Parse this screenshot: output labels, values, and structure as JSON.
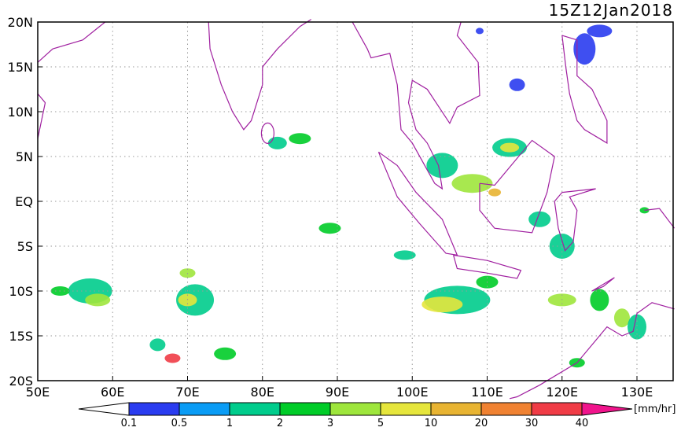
{
  "header": {
    "title": "15Z12Jan2018"
  },
  "map": {
    "lat_labels": [
      "20N",
      "15N",
      "10N",
      "5N",
      "EQ",
      "5S",
      "10S",
      "15S",
      "20S"
    ],
    "lon_labels": [
      "50E",
      "60E",
      "70E",
      "80E",
      "90E",
      "100E",
      "110E",
      "120E",
      "130E"
    ]
  },
  "colorbar": {
    "labels": [
      "0.1",
      "0.5",
      "1",
      "2",
      "3",
      "5",
      "10",
      "20",
      "30",
      "40"
    ],
    "colors": [
      "#ffffff",
      "#2a3cf0",
      "#0a9cf5",
      "#00cc8c",
      "#00cc28",
      "#9ee63c",
      "#e6e63c",
      "#e8b432",
      "#f08232",
      "#f03c46",
      "#f0148c"
    ],
    "unit": "[mm/hr]"
  }
}
